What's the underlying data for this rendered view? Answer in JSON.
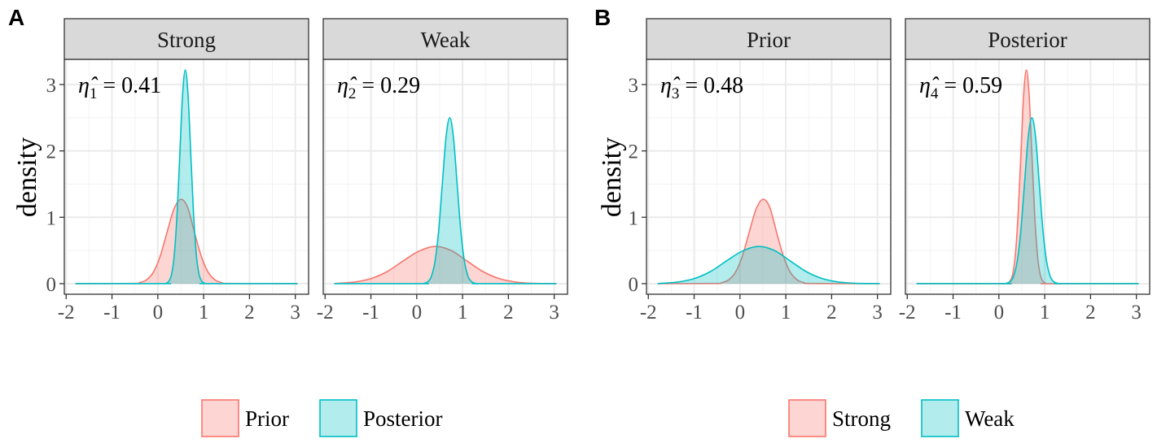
{
  "panel_labels": [
    "A",
    "B"
  ],
  "chart_data": [
    {
      "type": "area",
      "group": "A",
      "strip": "Strong",
      "ylabel": "density",
      "annotation": {
        "symbol": "η̂",
        "sub": "1",
        "text": " = 0.41"
      },
      "xlim": [
        -2.04,
        3.29
      ],
      "ylim": [
        -0.16,
        3.38
      ],
      "xticks": [
        "-2",
        "-1",
        "0",
        "1",
        "2",
        "3"
      ],
      "yticks": [
        "0",
        "1",
        "2",
        "3"
      ],
      "series": [
        {
          "name": "Prior",
          "color": "#F8766D",
          "points": [
            [
              -1.8,
              0
            ],
            [
              -0.55,
              0.003
            ],
            [
              -0.4,
              0.014
            ],
            [
              -0.25,
              0.056
            ],
            [
              -0.1,
              0.17
            ],
            [
              0.05,
              0.41
            ],
            [
              0.2,
              0.77
            ],
            [
              0.35,
              1.12
            ],
            [
              0.5,
              1.27
            ],
            [
              0.65,
              1.15
            ],
            [
              0.8,
              0.77
            ],
            [
              0.95,
              0.41
            ],
            [
              1.1,
              0.17
            ],
            [
              1.25,
              0.056
            ],
            [
              1.4,
              0.014
            ],
            [
              1.55,
              0.003
            ],
            [
              3.05,
              0
            ]
          ]
        },
        {
          "name": "Posterior",
          "color": "#00BFC4",
          "points": [
            [
              -1.8,
              0
            ],
            [
              0.12,
              0
            ],
            [
              0.18,
              0.007
            ],
            [
              0.24,
              0.036
            ],
            [
              0.3,
              0.14
            ],
            [
              0.36,
              0.44
            ],
            [
              0.42,
              1.05
            ],
            [
              0.48,
              1.95
            ],
            [
              0.54,
              2.84
            ],
            [
              0.6,
              3.22
            ],
            [
              0.66,
              2.84
            ],
            [
              0.72,
              1.95
            ],
            [
              0.78,
              1.05
            ],
            [
              0.84,
              0.44
            ],
            [
              0.9,
              0.14
            ],
            [
              0.96,
              0.036
            ],
            [
              1.02,
              0.007
            ],
            [
              1.08,
              0
            ],
            [
              3.05,
              0
            ]
          ]
        }
      ]
    },
    {
      "type": "area",
      "group": "A",
      "strip": "Weak",
      "ylabel": "",
      "annotation": {
        "symbol": "η̂",
        "sub": "2",
        "text": " = 0.29"
      },
      "xlim": [
        -2.04,
        3.29
      ],
      "ylim": [
        -0.16,
        3.38
      ],
      "xticks": [
        "-2",
        "-1",
        "0",
        "1",
        "2",
        "3"
      ],
      "yticks": [],
      "series": [
        {
          "name": "Prior",
          "color": "#F8766D",
          "points": [
            [
              -1.8,
              0
            ],
            [
              -1.7,
              0.006
            ],
            [
              -1.35,
              0.025
            ],
            [
              -1.0,
              0.076
            ],
            [
              -0.65,
              0.18
            ],
            [
              -0.3,
              0.34
            ],
            [
              0.05,
              0.49
            ],
            [
              0.4,
              0.56
            ],
            [
              0.75,
              0.5
            ],
            [
              1.1,
              0.34
            ],
            [
              1.45,
              0.18
            ],
            [
              1.8,
              0.076
            ],
            [
              2.15,
              0.025
            ],
            [
              2.5,
              0.006
            ],
            [
              2.85,
              0.001
            ],
            [
              3.05,
              0
            ]
          ]
        },
        {
          "name": "Posterior",
          "color": "#00BFC4",
          "points": [
            [
              -1.8,
              0
            ],
            [
              0.1,
              0
            ],
            [
              0.16,
              0.005
            ],
            [
              0.24,
              0.028
            ],
            [
              0.32,
              0.11
            ],
            [
              0.4,
              0.34
            ],
            [
              0.48,
              0.81
            ],
            [
              0.56,
              1.52
            ],
            [
              0.64,
              2.21
            ],
            [
              0.72,
              2.5
            ],
            [
              0.8,
              2.21
            ],
            [
              0.88,
              1.52
            ],
            [
              0.96,
              0.81
            ],
            [
              1.04,
              0.34
            ],
            [
              1.12,
              0.11
            ],
            [
              1.2,
              0.028
            ],
            [
              1.28,
              0.005
            ],
            [
              1.36,
              0
            ],
            [
              3.05,
              0
            ]
          ]
        }
      ]
    },
    {
      "type": "area",
      "group": "B",
      "strip": "Prior",
      "ylabel": "density",
      "annotation": {
        "symbol": "η̂",
        "sub": "3",
        "text": " = 0.48"
      },
      "xlim": [
        -2.04,
        3.29
      ],
      "ylim": [
        -0.16,
        3.38
      ],
      "xticks": [
        "-2",
        "-1",
        "0",
        "1",
        "2",
        "3"
      ],
      "yticks": [
        "0",
        "1",
        "2",
        "3"
      ],
      "series": [
        {
          "name": "Strong",
          "color": "#F8766D",
          "points": [
            [
              -1.8,
              0
            ],
            [
              -0.55,
              0.003
            ],
            [
              -0.4,
              0.014
            ],
            [
              -0.25,
              0.056
            ],
            [
              -0.1,
              0.17
            ],
            [
              0.05,
              0.41
            ],
            [
              0.2,
              0.77
            ],
            [
              0.35,
              1.12
            ],
            [
              0.5,
              1.27
            ],
            [
              0.65,
              1.15
            ],
            [
              0.8,
              0.77
            ],
            [
              0.95,
              0.41
            ],
            [
              1.1,
              0.17
            ],
            [
              1.25,
              0.056
            ],
            [
              1.4,
              0.014
            ],
            [
              1.55,
              0.003
            ],
            [
              3.05,
              0
            ]
          ]
        },
        {
          "name": "Weak",
          "color": "#00BFC4",
          "points": [
            [
              -1.8,
              0
            ],
            [
              -1.7,
              0.006
            ],
            [
              -1.35,
              0.025
            ],
            [
              -1.0,
              0.076
            ],
            [
              -0.65,
              0.18
            ],
            [
              -0.3,
              0.34
            ],
            [
              0.05,
              0.49
            ],
            [
              0.4,
              0.56
            ],
            [
              0.75,
              0.5
            ],
            [
              1.1,
              0.34
            ],
            [
              1.45,
              0.18
            ],
            [
              1.8,
              0.076
            ],
            [
              2.15,
              0.025
            ],
            [
              2.5,
              0.006
            ],
            [
              2.85,
              0.001
            ],
            [
              3.05,
              0
            ]
          ]
        }
      ]
    },
    {
      "type": "area",
      "group": "B",
      "strip": "Posterior",
      "ylabel": "",
      "annotation": {
        "symbol": "η̂",
        "sub": "4",
        "text": " = 0.59"
      },
      "xlim": [
        -2.04,
        3.29
      ],
      "ylim": [
        -0.16,
        3.38
      ],
      "xticks": [
        "-2",
        "-1",
        "0",
        "1",
        "2",
        "3"
      ],
      "yticks": [],
      "series": [
        {
          "name": "Strong",
          "color": "#F8766D",
          "points": [
            [
              -1.8,
              0
            ],
            [
              0.12,
              0
            ],
            [
              0.18,
              0.007
            ],
            [
              0.24,
              0.036
            ],
            [
              0.3,
              0.14
            ],
            [
              0.36,
              0.44
            ],
            [
              0.42,
              1.05
            ],
            [
              0.48,
              1.95
            ],
            [
              0.54,
              2.84
            ],
            [
              0.6,
              3.22
            ],
            [
              0.66,
              2.84
            ],
            [
              0.72,
              1.95
            ],
            [
              0.78,
              1.05
            ],
            [
              0.84,
              0.44
            ],
            [
              0.9,
              0.14
            ],
            [
              0.96,
              0.036
            ],
            [
              1.02,
              0.007
            ],
            [
              1.08,
              0
            ],
            [
              3.05,
              0
            ]
          ]
        },
        {
          "name": "Weak",
          "color": "#00BFC4",
          "points": [
            [
              -1.8,
              0
            ],
            [
              0.1,
              0
            ],
            [
              0.16,
              0.005
            ],
            [
              0.24,
              0.028
            ],
            [
              0.32,
              0.11
            ],
            [
              0.4,
              0.34
            ],
            [
              0.48,
              0.81
            ],
            [
              0.56,
              1.52
            ],
            [
              0.64,
              2.21
            ],
            [
              0.72,
              2.5
            ],
            [
              0.8,
              2.21
            ],
            [
              0.88,
              1.52
            ],
            [
              0.96,
              0.81
            ],
            [
              1.04,
              0.34
            ],
            [
              1.12,
              0.11
            ],
            [
              1.2,
              0.028
            ],
            [
              1.28,
              0.005
            ],
            [
              1.36,
              0
            ],
            [
              3.05,
              0
            ]
          ]
        }
      ]
    }
  ],
  "legends": [
    {
      "group": "A",
      "items": [
        {
          "label": "Prior",
          "color": "#F8766D"
        },
        {
          "label": "Posterior",
          "color": "#00BFC4"
        }
      ]
    },
    {
      "group": "B",
      "items": [
        {
          "label": "Strong",
          "color": "#F8766D"
        },
        {
          "label": "Weak",
          "color": "#00BFC4"
        }
      ]
    }
  ]
}
